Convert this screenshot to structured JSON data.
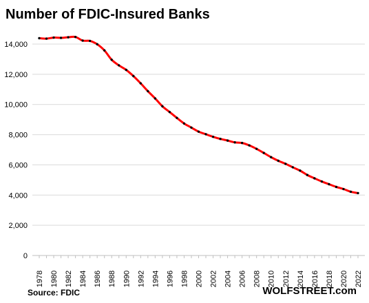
{
  "chart_data": {
    "type": "line",
    "title": "Number of FDIC-Insured  Banks",
    "source": "Source: FDIC",
    "brand": "WOLFSTREET.com",
    "xlabel": "",
    "ylabel": "",
    "grid": true,
    "ylim": [
      0,
      14000
    ],
    "yticks": [
      0,
      2000,
      4000,
      6000,
      8000,
      10000,
      12000,
      14000
    ],
    "ytick_labels": [
      "0",
      "2,000",
      "4,000",
      "6,000",
      "8,000",
      "10,000",
      "12,000",
      "14,000"
    ],
    "xlim": [
      1978,
      2022
    ],
    "xticks": [
      1978,
      1980,
      1982,
      1984,
      1986,
      1988,
      1990,
      1992,
      1994,
      1996,
      1998,
      2000,
      2002,
      2004,
      2006,
      2008,
      2010,
      2012,
      2014,
      2016,
      2018,
      2020,
      2022
    ],
    "line_color": "#ff0000",
    "marker_color": "#000000",
    "x": [
      1978,
      1979,
      1980,
      1981,
      1982,
      1983,
      1984,
      1985,
      1986,
      1987,
      1988,
      1989,
      1990,
      1991,
      1992,
      1993,
      1994,
      1995,
      1996,
      1997,
      1998,
      1999,
      2000,
      2001,
      2002,
      2003,
      2004,
      2005,
      2006,
      2007,
      2008,
      2009,
      2010,
      2011,
      2012,
      2013,
      2014,
      2015,
      2016,
      2017,
      2018,
      2019,
      2020,
      2021,
      2022
    ],
    "y": [
      14390,
      14360,
      14430,
      14410,
      14450,
      14470,
      14230,
      14210,
      13990,
      13580,
      12960,
      12590,
      12290,
      11880,
      11400,
      10880,
      10400,
      9880,
      9500,
      9110,
      8740,
      8470,
      8200,
      8030,
      7860,
      7720,
      7610,
      7490,
      7450,
      7290,
      7060,
      6790,
      6510,
      6270,
      6070,
      5840,
      5620,
      5330,
      5110,
      4900,
      4720,
      4540,
      4400,
      4220,
      4130
    ]
  }
}
